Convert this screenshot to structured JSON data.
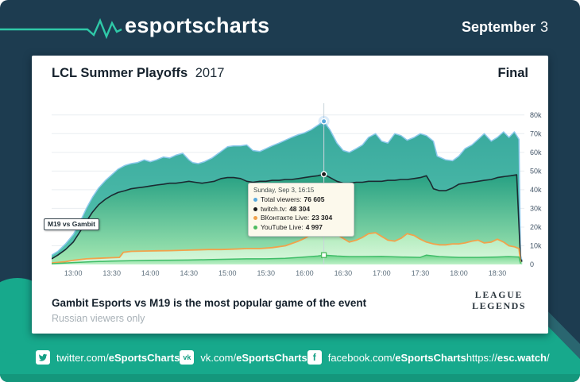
{
  "header": {
    "logo": "esportscharts",
    "date_month": "September",
    "date_day": "3"
  },
  "card": {
    "title_bold": "LCL Summer Playoffs",
    "title_year": "2017",
    "stage": "Final",
    "footnote_bold": "Gambit Esports vs M19 is the most popular game of the event",
    "footnote_sub": "Russian viewers only",
    "lol_logo_line1": "LEAGUE",
    "lol_logo_line2": "LEGENDS"
  },
  "footer": {
    "items": [
      {
        "icon": "twitter",
        "prefix": "twitter.com/",
        "bold": "eSportsCharts"
      },
      {
        "icon": "vk",
        "icon_text": "vk",
        "prefix": "vk.com/",
        "bold": "eSportsCharts"
      },
      {
        "icon": "facebook",
        "icon_text": "f",
        "prefix": "facebook.com/",
        "bold": "eSportsCharts"
      }
    ],
    "url_prefix": "https://",
    "url_bold": "esc.watch",
    "url_suffix": "/"
  },
  "colors": {
    "background_navy": "#1d3c50",
    "band_green": "#17a98c",
    "band_teal_stripe": "#2a6670",
    "pulse_accent": "#2fc9a8",
    "grid": "#e9edf0",
    "axis_text": "#5d6f7d"
  },
  "chart_data": {
    "type": "area",
    "title": "LCL Summer Playoffs 2017 — Final",
    "x_unit": "time of day",
    "x_range_hours": [
      12.72,
      18.85
    ],
    "ylim": [
      0,
      88
    ],
    "grid": true,
    "legend_position": "tooltip-only",
    "y_ticks": [
      "0",
      "10k",
      "20k",
      "30k",
      "40k",
      "50k",
      "60k",
      "70k",
      "80k"
    ],
    "y_tick_values": [
      0,
      10,
      20,
      30,
      40,
      50,
      60,
      70,
      80
    ],
    "x_ticks": [
      "13:00",
      "13:30",
      "14:00",
      "14:30",
      "15:00",
      "15:30",
      "16:00",
      "16:30",
      "17:00",
      "17:30",
      "18:00",
      "18:30"
    ],
    "x_tick_hours": [
      13,
      13.5,
      14,
      14.5,
      15,
      15.5,
      16,
      16.5,
      17,
      17.5,
      18,
      18.5
    ],
    "annotation": "M19 vs Gambit",
    "series": [
      {
        "name": "Total viewers",
        "line": "#8cc8ec",
        "dot": "#59a9dd",
        "width": 1.5,
        "marker": "circle",
        "points": [
          [
            12.72,
            5
          ],
          [
            12.8,
            7
          ],
          [
            12.9,
            11
          ],
          [
            13.0,
            16
          ],
          [
            13.08,
            22
          ],
          [
            13.17,
            30
          ],
          [
            13.25,
            36
          ],
          [
            13.33,
            41
          ],
          [
            13.42,
            45
          ],
          [
            13.5,
            48
          ],
          [
            13.58,
            51
          ],
          [
            13.67,
            53
          ],
          [
            13.75,
            54
          ],
          [
            13.83,
            54.5
          ],
          [
            13.92,
            56
          ],
          [
            14.0,
            55
          ],
          [
            14.08,
            56
          ],
          [
            14.17,
            57.5
          ],
          [
            14.25,
            57
          ],
          [
            14.33,
            58.5
          ],
          [
            14.42,
            59.5
          ],
          [
            14.5,
            56
          ],
          [
            14.55,
            54.5
          ],
          [
            14.62,
            54
          ],
          [
            14.7,
            55
          ],
          [
            14.8,
            57
          ],
          [
            14.9,
            60
          ],
          [
            15.0,
            63
          ],
          [
            15.08,
            63.5
          ],
          [
            15.17,
            63.5
          ],
          [
            15.25,
            64
          ],
          [
            15.33,
            61
          ],
          [
            15.42,
            60.5
          ],
          [
            15.5,
            62
          ],
          [
            15.58,
            63.5
          ],
          [
            15.67,
            65
          ],
          [
            15.75,
            66.5
          ],
          [
            15.83,
            68
          ],
          [
            15.92,
            69.5
          ],
          [
            16.0,
            70.5
          ],
          [
            16.08,
            72
          ],
          [
            16.17,
            74.5
          ],
          [
            16.25,
            76.6
          ],
          [
            16.33,
            72
          ],
          [
            16.42,
            65
          ],
          [
            16.5,
            61
          ],
          [
            16.58,
            60
          ],
          [
            16.67,
            62
          ],
          [
            16.75,
            64
          ],
          [
            16.83,
            68
          ],
          [
            16.92,
            70
          ],
          [
            17.0,
            66
          ],
          [
            17.08,
            65
          ],
          [
            17.17,
            70
          ],
          [
            17.25,
            69
          ],
          [
            17.33,
            66.5
          ],
          [
            17.42,
            68
          ],
          [
            17.5,
            70
          ],
          [
            17.58,
            69
          ],
          [
            17.67,
            66
          ],
          [
            17.72,
            58
          ],
          [
            17.83,
            56
          ],
          [
            17.92,
            55.5
          ],
          [
            18.0,
            58
          ],
          [
            18.08,
            62
          ],
          [
            18.17,
            64
          ],
          [
            18.25,
            67
          ],
          [
            18.33,
            70
          ],
          [
            18.42,
            66
          ],
          [
            18.5,
            68
          ],
          [
            18.58,
            71
          ],
          [
            18.65,
            68
          ],
          [
            18.72,
            71
          ],
          [
            18.78,
            67
          ],
          [
            18.8,
            5
          ],
          [
            18.82,
            2
          ]
        ]
      },
      {
        "name": "twitch.tv",
        "line": "#1b2a31",
        "dot": "#1b1b1b",
        "width": 1.6,
        "marker": "circle",
        "points": [
          [
            12.72,
            3
          ],
          [
            12.8,
            5
          ],
          [
            12.9,
            8
          ],
          [
            13.0,
            12
          ],
          [
            13.08,
            17
          ],
          [
            13.17,
            23
          ],
          [
            13.25,
            28
          ],
          [
            13.33,
            32
          ],
          [
            13.42,
            35
          ],
          [
            13.5,
            37
          ],
          [
            13.58,
            38.5
          ],
          [
            13.67,
            39.5
          ],
          [
            13.75,
            40.5
          ],
          [
            13.83,
            41
          ],
          [
            13.92,
            41.5
          ],
          [
            14.0,
            42
          ],
          [
            14.08,
            42.5
          ],
          [
            14.17,
            43
          ],
          [
            14.25,
            43.5
          ],
          [
            14.33,
            43.5
          ],
          [
            14.42,
            44
          ],
          [
            14.5,
            44.5
          ],
          [
            14.58,
            44
          ],
          [
            14.67,
            43.5
          ],
          [
            14.75,
            44
          ],
          [
            14.83,
            44.5
          ],
          [
            14.92,
            46
          ],
          [
            15.0,
            46.5
          ],
          [
            15.08,
            46.5
          ],
          [
            15.17,
            46
          ],
          [
            15.25,
            44.5
          ],
          [
            15.33,
            44
          ],
          [
            15.42,
            44.5
          ],
          [
            15.5,
            44.5
          ],
          [
            15.58,
            45
          ],
          [
            15.67,
            45
          ],
          [
            15.75,
            45.5
          ],
          [
            15.83,
            45.5
          ],
          [
            15.92,
            46
          ],
          [
            16.0,
            46.5
          ],
          [
            16.08,
            47
          ],
          [
            16.17,
            47.5
          ],
          [
            16.25,
            48.3
          ],
          [
            16.33,
            46.5
          ],
          [
            16.42,
            44.5
          ],
          [
            16.5,
            43.5
          ],
          [
            16.58,
            43.5
          ],
          [
            16.67,
            44
          ],
          [
            16.75,
            44
          ],
          [
            16.83,
            44.5
          ],
          [
            16.92,
            44.5
          ],
          [
            17.0,
            44.5
          ],
          [
            17.08,
            45
          ],
          [
            17.17,
            45
          ],
          [
            17.25,
            45.5
          ],
          [
            17.33,
            45.5
          ],
          [
            17.42,
            46
          ],
          [
            17.5,
            46.5
          ],
          [
            17.58,
            47.5
          ],
          [
            17.63,
            44
          ],
          [
            17.67,
            40.5
          ],
          [
            17.75,
            39.5
          ],
          [
            17.83,
            39.5
          ],
          [
            17.92,
            41
          ],
          [
            18.0,
            43
          ],
          [
            18.08,
            43.5
          ],
          [
            18.17,
            44
          ],
          [
            18.25,
            44.5
          ],
          [
            18.33,
            45
          ],
          [
            18.42,
            45.5
          ],
          [
            18.5,
            46.5
          ],
          [
            18.58,
            47
          ],
          [
            18.67,
            47.5
          ],
          [
            18.75,
            48
          ],
          [
            18.8,
            3
          ],
          [
            18.82,
            1.5
          ]
        ]
      },
      {
        "name": "ВКонтакте Live",
        "line": "#f2a24b",
        "dot": "#f0a14b",
        "width": 1.8,
        "marker": "triangle",
        "points": [
          [
            12.72,
            0.8
          ],
          [
            12.9,
            1.5
          ],
          [
            13.0,
            2.2
          ],
          [
            13.17,
            3
          ],
          [
            13.33,
            3.3
          ],
          [
            13.5,
            3.6
          ],
          [
            13.6,
            3.8
          ],
          [
            13.65,
            6.5
          ],
          [
            13.75,
            7
          ],
          [
            13.92,
            7.2
          ],
          [
            14.08,
            7.3
          ],
          [
            14.25,
            7.4
          ],
          [
            14.42,
            7.6
          ],
          [
            14.58,
            7.8
          ],
          [
            14.75,
            8
          ],
          [
            14.92,
            8
          ],
          [
            15.08,
            8.2
          ],
          [
            15.25,
            8.5
          ],
          [
            15.42,
            8.5
          ],
          [
            15.58,
            9
          ],
          [
            15.75,
            10
          ],
          [
            15.92,
            12.5
          ],
          [
            16.0,
            14
          ],
          [
            16.08,
            16
          ],
          [
            16.17,
            19
          ],
          [
            16.25,
            23.3
          ],
          [
            16.33,
            19
          ],
          [
            16.42,
            16
          ],
          [
            16.5,
            14
          ],
          [
            16.58,
            12
          ],
          [
            16.67,
            13
          ],
          [
            16.75,
            14.5
          ],
          [
            16.83,
            16.5
          ],
          [
            16.92,
            17
          ],
          [
            17.0,
            15
          ],
          [
            17.08,
            13
          ],
          [
            17.17,
            12.5
          ],
          [
            17.25,
            14
          ],
          [
            17.33,
            16.5
          ],
          [
            17.42,
            15.5
          ],
          [
            17.5,
            13.5
          ],
          [
            17.58,
            12
          ],
          [
            17.67,
            11
          ],
          [
            17.75,
            10.5
          ],
          [
            17.83,
            10.5
          ],
          [
            17.92,
            11
          ],
          [
            18.0,
            11
          ],
          [
            18.08,
            11.5
          ],
          [
            18.17,
            12.5
          ],
          [
            18.25,
            13
          ],
          [
            18.33,
            11.5
          ],
          [
            18.42,
            12
          ],
          [
            18.5,
            13.5
          ],
          [
            18.58,
            12
          ],
          [
            18.65,
            10
          ],
          [
            18.72,
            9.5
          ],
          [
            18.78,
            8.5
          ],
          [
            18.8,
            1
          ]
        ]
      },
      {
        "name": "YouTube Live",
        "line": "#3fbd68",
        "dot": "#4cbb5f",
        "width": 1.5,
        "marker": "square",
        "points": [
          [
            12.72,
            0.4
          ],
          [
            13.0,
            1
          ],
          [
            13.25,
            1.5
          ],
          [
            13.5,
            1.8
          ],
          [
            13.75,
            2
          ],
          [
            14.0,
            2.2
          ],
          [
            14.25,
            2.3
          ],
          [
            14.5,
            2.4
          ],
          [
            14.75,
            2.6
          ],
          [
            15.0,
            2.8
          ],
          [
            15.25,
            3
          ],
          [
            15.5,
            3
          ],
          [
            15.75,
            3.3
          ],
          [
            16.0,
            4
          ],
          [
            16.17,
            4.5
          ],
          [
            16.25,
            5
          ],
          [
            16.42,
            4.5
          ],
          [
            16.58,
            4.2
          ],
          [
            16.75,
            4.2
          ],
          [
            17.0,
            4.3
          ],
          [
            17.25,
            4
          ],
          [
            17.5,
            3.8
          ],
          [
            17.58,
            5
          ],
          [
            17.75,
            4.2
          ],
          [
            18.0,
            3.8
          ],
          [
            18.25,
            3.8
          ],
          [
            18.5,
            4
          ],
          [
            18.65,
            4.2
          ],
          [
            18.78,
            4
          ],
          [
            18.8,
            0.5
          ]
        ]
      }
    ],
    "crosshair": {
      "hour": 16.25,
      "values_k": [
        76.605,
        48.304,
        23.304,
        4.997
      ]
    },
    "tooltip": {
      "datetime": "Sunday, Sep 3, 16:15",
      "rows": [
        {
          "label": "Total viewers:",
          "value": "76 605"
        },
        {
          "label": "twitch.tv:",
          "value": "48 304"
        },
        {
          "label": "ВКонтакте Live:",
          "value": "23 304"
        },
        {
          "label": "YouTube Live:",
          "value": "4 997"
        }
      ]
    }
  }
}
